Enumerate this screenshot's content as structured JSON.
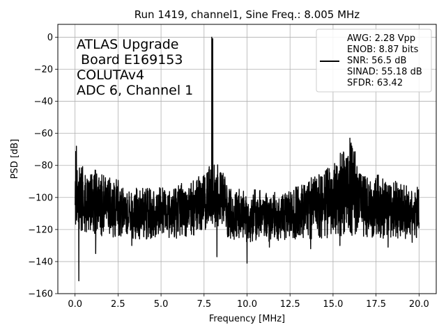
{
  "chart_data": {
    "type": "line",
    "title": "Run 1419, channel1, Sine Freq.: 8.005 MHz",
    "xlabel": "Frequency [MHz]",
    "ylabel": "PSD [dB]",
    "xlim": [
      -1.0,
      21.0
    ],
    "ylim": [
      -160,
      8
    ],
    "xticks": [
      0.0,
      2.5,
      5.0,
      7.5,
      10.0,
      12.5,
      15.0,
      17.5,
      20.0
    ],
    "xtick_labels": [
      "0.0",
      "2.5",
      "5.0",
      "7.5",
      "10.0",
      "12.5",
      "15.0",
      "17.5",
      "20.0"
    ],
    "yticks": [
      0,
      -20,
      -40,
      -60,
      -80,
      -100,
      -120,
      -140,
      -160
    ],
    "ytick_labels": [
      "0",
      "−20",
      "−40",
      "−60",
      "−80",
      "−100",
      "−120",
      "−140",
      "−160"
    ],
    "grid": true,
    "legend_position": "upper-right",
    "annotation_lines": [
      "ATLAS Upgrade",
      " Board E169153",
      "COLUTAv4",
      "ADC 6, Channel 1"
    ],
    "legend_lines": [
      "AWG: 2.28 Vpp",
      "ENOB: 8.87 bits",
      "SNR: 56.5 dB",
      "SINAD: 55.18 dB",
      "SFDR: 63.42"
    ],
    "series_color": "#000000",
    "grid_color": "#b0b0b0",
    "envelope": {
      "x": [
        0.0,
        0.3,
        1.0,
        2.0,
        3.0,
        4.0,
        5.0,
        6.0,
        7.0,
        7.6,
        8.0,
        8.4,
        9.0,
        10.0,
        11.0,
        12.0,
        13.0,
        14.0,
        15.0,
        15.6,
        16.0,
        16.4,
        17.0,
        18.0,
        19.0,
        20.0
      ],
      "upper": [
        -68,
        -78,
        -82,
        -86,
        -92,
        -94,
        -93,
        -92,
        -88,
        -80,
        -76,
        -80,
        -92,
        -94,
        -96,
        -96,
        -92,
        -86,
        -78,
        -70,
        -64,
        -72,
        -82,
        -88,
        -90,
        -93
      ],
      "lower": [
        -118,
        -122,
        -123,
        -125,
        -125,
        -127,
        -126,
        -126,
        -124,
        -120,
        -118,
        -120,
        -126,
        -128,
        -128,
        -128,
        -126,
        -126,
        -125,
        -124,
        -124,
        -125,
        -126,
        -126,
        -126,
        -125
      ]
    },
    "spikes": [
      {
        "x": 7.95,
        "y": 0
      },
      {
        "x": 8.005,
        "y": -1
      },
      {
        "x": 0.08,
        "y": -68
      },
      {
        "x": 15.98,
        "y": -63
      },
      {
        "x": 16.05,
        "y": -66
      }
    ],
    "dips": [
      {
        "x": 0.22,
        "y": -152
      },
      {
        "x": 1.2,
        "y": -135
      },
      {
        "x": 3.3,
        "y": -130
      },
      {
        "x": 8.25,
        "y": -137
      },
      {
        "x": 10.0,
        "y": -141
      },
      {
        "x": 11.3,
        "y": -131
      },
      {
        "x": 13.7,
        "y": -132
      },
      {
        "x": 15.4,
        "y": -130
      },
      {
        "x": 18.2,
        "y": -131
      },
      {
        "x": 19.6,
        "y": -128
      }
    ]
  }
}
